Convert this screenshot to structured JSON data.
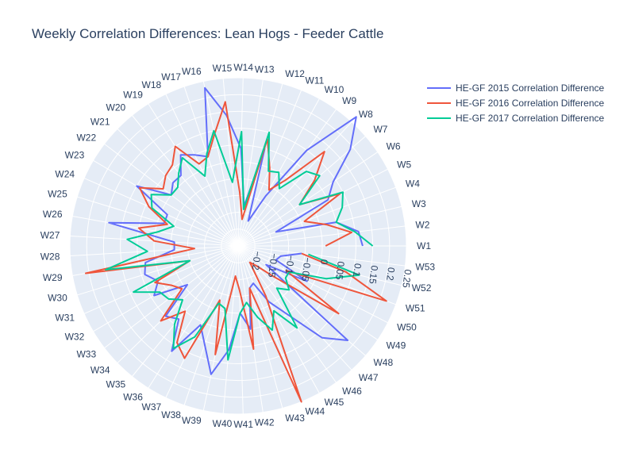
{
  "chart_data": {
    "type": "polar-line",
    "title": "Weekly Correlation Differences: Lean Hogs - Feeder Cattle",
    "theta_labels": [
      "W1",
      "W2",
      "W3",
      "W4",
      "W5",
      "W6",
      "W7",
      "W8",
      "W9",
      "W10",
      "W11",
      "W12",
      "W13",
      "W14",
      "W15",
      "W16",
      "W17",
      "W18",
      "W19",
      "W20",
      "W21",
      "W22",
      "W23",
      "W24",
      "W25",
      "W26",
      "W27",
      "W28",
      "W29",
      "W30",
      "W31",
      "W32",
      "W33",
      "W34",
      "W35",
      "W36",
      "W37",
      "W38",
      "W39",
      "W40",
      "W41",
      "W42",
      "W43",
      "W44",
      "W45",
      "W46",
      "W47",
      "W48",
      "W49",
      "W50",
      "W51",
      "W52",
      "W53"
    ],
    "radial_range": [
      -0.25,
      0.25
    ],
    "radial_ticks": [
      -0.2,
      -0.15,
      -0.1,
      -0.05,
      0,
      0.05,
      0.1,
      0.15,
      0.2,
      0.25
    ],
    "radial_tick_labels": [
      "−0.2",
      "−0.15",
      "−0.1",
      "−0.05",
      "0",
      "0.05",
      "0.1",
      "0.15",
      "0.2",
      "0.25"
    ],
    "grid": true,
    "legend_position": "top-right",
    "series": [
      {
        "name": "HE-GF 2015 Correlation Difference",
        "color": "#636efa",
        "values": [
          0.12,
          0.11,
          0.05,
          -0.13,
          0.05,
          0.09,
          0.19,
          0.27,
          0.1,
          -0.08,
          -0.17,
          0.05,
          -0.13,
          0.04,
          0.14,
          0.23,
          0.03,
          0.05,
          0.07,
          0.02,
          0.02,
          0.0,
          0.1,
          -0.02,
          -0.02,
          0.14,
          -0.06,
          -0.06,
          0.03,
          0.04,
          0.01,
          0.04,
          -0.06,
          0.05,
          0.03,
          0.12,
          0.01,
          0.06,
          0.14,
          0.06,
          -0.05,
          0.0,
          -0.12,
          -0.13,
          -0.06,
          0.0,
          0.12,
          0.18,
          -0.15,
          -0.02,
          -0.13,
          -0.12,
          -0.06
        ]
      },
      {
        "name": "HE-GF 2016 Correlation Difference",
        "color": "#ef553b",
        "values": [
          0.01,
          0.09,
          0.02,
          -0.04,
          0.09,
          -0.03,
          0.05,
          0.13,
          -0.01,
          -0.06,
          0.0,
          0.08,
          -0.17,
          -0.09,
          0.18,
          0.09,
          0.03,
          0.02,
          0.1,
          0.06,
          0.05,
          0.03,
          0.09,
          0.04,
          -0.03,
          0.05,
          0.0,
          -0.12,
          0.21,
          -0.1,
          0.02,
          -0.02,
          -0.04,
          0.07,
          0.0,
          0.09,
          0.12,
          -0.08,
          0.08,
          -0.16,
          -0.12,
          0.06,
          -0.12,
          0.25,
          -0.08,
          -0.19,
          -0.17,
          -0.11,
          0.11,
          -0.09,
          0.22,
          0.08,
          -0.06
        ]
      },
      {
        "name": "HE-GF 2017 Correlation Difference",
        "color": "#00cc96",
        "values": [
          0.15,
          0.1,
          0.05,
          0.08,
          0.1,
          -0.03,
          0.07,
          0.05,
          -0.04,
          0.0,
          -0.01,
          0.1,
          -0.14,
          0.09,
          -0.06,
          0.1,
          0.04,
          -0.02,
          0.06,
          0.03,
          0.0,
          0.0,
          0.05,
          0.03,
          -0.05,
          -0.01,
          0.08,
          0.02,
          0.15,
          -0.1,
          0.09,
          0.02,
          0.01,
          -0.02,
          0.05,
          0.11,
          0.05,
          -0.07,
          -0.06,
          0.09,
          -0.05,
          -0.08,
          -0.03,
          0.02,
          -0.03,
          0.05,
          -0.08,
          -0.05,
          -0.08,
          -0.08,
          0.03,
          0.12,
          -0.04
        ]
      }
    ]
  }
}
